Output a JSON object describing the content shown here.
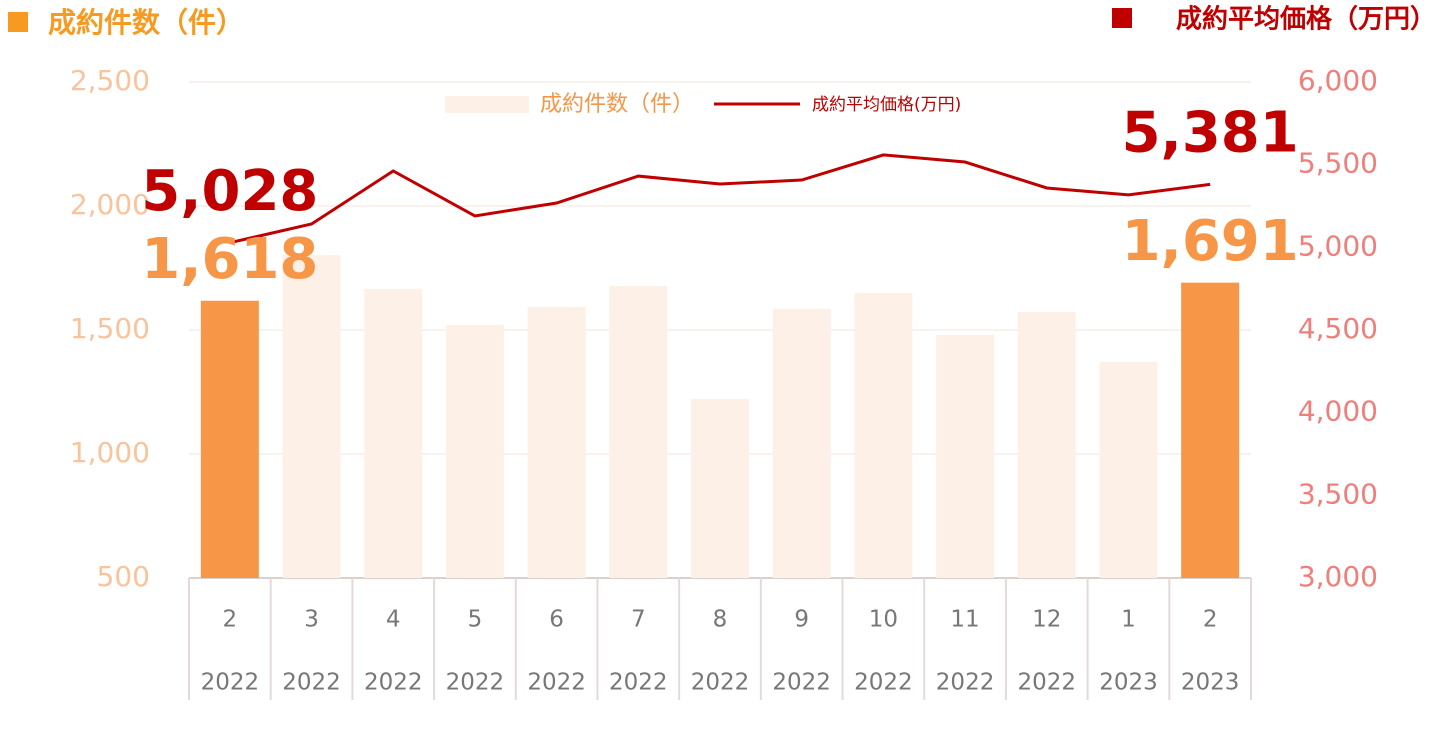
{
  "chart_data": {
    "type": "combo",
    "y_title": "成約件数（件）",
    "y2_title": "成約平均価格（万円）",
    "categories": [
      "2",
      "3",
      "4",
      "5",
      "6",
      "7",
      "8",
      "9",
      "10",
      "11",
      "12",
      "1",
      "2"
    ],
    "category_years": [
      "2022",
      "2022",
      "2022",
      "2022",
      "2022",
      "2022",
      "2022",
      "2022",
      "2022",
      "2022",
      "2022",
      "2023",
      "2023"
    ],
    "series": [
      {
        "name": "成約件数（件）",
        "type": "bar",
        "color": "#fdf0e6",
        "colors": [
          "#f79646",
          "#fdf0e6",
          "#fdf0e6",
          "#fdf0e6",
          "#fdf0e6",
          "#fdf0e6",
          "#fdf0e6",
          "#fdf0e6",
          "#fdf0e6",
          "#fdf0e6",
          "#fdf0e6",
          "#fdf0e6",
          "#f79646"
        ],
        "values": [
          1618,
          1802,
          1665,
          1520,
          1593,
          1677,
          1222,
          1585,
          1649,
          1480,
          1573,
          1371,
          1691
        ],
        "value_labels": [
          "1,618",
          null,
          null,
          null,
          null,
          null,
          null,
          null,
          null,
          null,
          null,
          null,
          "1,691"
        ]
      },
      {
        "name": "成約平均価格(万円)",
        "type": "line",
        "color": "#c00000",
        "axis": "y2",
        "values": [
          5028,
          5141,
          5462,
          5190,
          5268,
          5431,
          5383,
          5407,
          5559,
          5516,
          5359,
          5317,
          5381
        ],
        "value_labels": [
          "5,028",
          null,
          null,
          null,
          null,
          null,
          null,
          null,
          null,
          null,
          null,
          null,
          "5,381"
        ]
      }
    ],
    "ylim": [
      500,
      2500
    ],
    "yticks": [
      500,
      {
        "value": 1000,
        "label": "1,000"
      },
      {
        "value": 1500,
        "label": "1,500"
      },
      {
        "value": 2000,
        "label": "2,000"
      },
      {
        "value": 2500,
        "label": "2,500"
      }
    ],
    "y2lim": [
      3000,
      6000
    ],
    "y2ticks": [
      {
        "value": 3000,
        "label": "3,000"
      },
      {
        "value": 3500,
        "label": "3,500"
      },
      {
        "value": 4000,
        "label": "4,000"
      },
      {
        "value": 4500,
        "label": "4,500"
      },
      {
        "value": 5000,
        "label": "5,000"
      },
      {
        "value": 5500,
        "label": "5,500"
      },
      {
        "value": 6000,
        "label": "6,000"
      }
    ],
    "grid": true
  }
}
